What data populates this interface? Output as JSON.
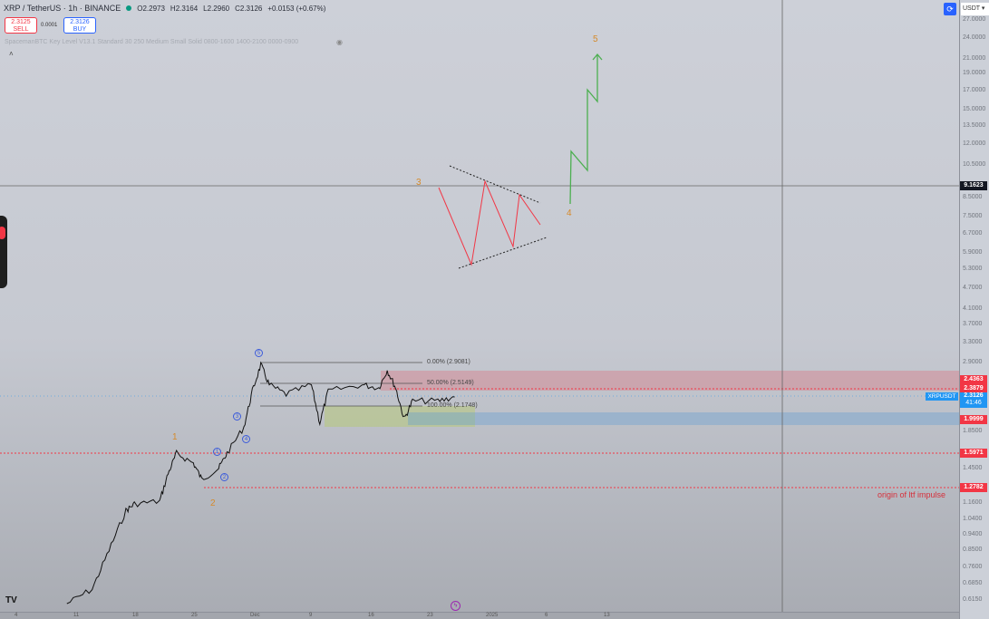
{
  "header": {
    "symbol": "XRP / TetherUS · 1h · BINANCE",
    "open": "O2.2973",
    "high": "H2.3164",
    "low": "L2.2960",
    "close": "C2.3126",
    "change": "+0.0153 (+0.67%)"
  },
  "trade": {
    "sell_price": "2.3125",
    "sell_label": "SELL",
    "spread": "0.0001",
    "buy_price": "2.3126",
    "buy_label": "BUY"
  },
  "indicator": "SpacemanBTC Key Level V13.1 Standard 30 250 Medium Small Solid 0800-1600 1400-2100 0000-0900",
  "currency": "USDT",
  "price_axis": {
    "scale": "log",
    "ticks": [
      "27.0000",
      "24.0000",
      "21.0000",
      "19.0000",
      "17.0000",
      "15.0000",
      "13.5000",
      "12.0000",
      "10.5000",
      "8.5000",
      "7.5000",
      "6.7000",
      "5.9000",
      "5.3000",
      "4.7000",
      "4.1000",
      "3.7000",
      "3.3000",
      "2.9000",
      "1.8500",
      "1.4500",
      "1.1600",
      "1.0400",
      "0.9400",
      "0.8500",
      "0.7600",
      "0.6850",
      "0.6150"
    ]
  },
  "price_labels": {
    "crosshair": "9.1623",
    "level1": "2.4363",
    "level2": "2.3879",
    "last_symbol": "XRPUSDT",
    "last": "2.3126",
    "countdown": "41:46",
    "level3": "1.9999",
    "level4": "1.5971",
    "level5": "1.2782"
  },
  "colors": {
    "red": "#f23645",
    "blue": "#2196f3",
    "green": "#4caf50",
    "orange": "#d58a2a"
  },
  "x_axis": [
    "4",
    "11",
    "18",
    "25",
    "Dec",
    "9",
    "16",
    "23",
    "2025",
    "6",
    "13"
  ],
  "fib": [
    "0.00% (2.9081)",
    "50.00% (2.5149)",
    "100.00% (2.1748)"
  ],
  "annotation": "origin of ltf impulse",
  "waves": {
    "w1": "1",
    "w2": "2",
    "w3": "3",
    "w4": "4",
    "w5": "5",
    "c1": "1",
    "c2": "2",
    "c3": "3",
    "c4": "4",
    "c5": "5"
  },
  "chart_data": {
    "type": "candlestick-approx",
    "x": [
      "2024-11-10",
      "2024-11-13",
      "2024-11-15",
      "2024-11-17",
      "2024-11-18",
      "2024-11-21",
      "2024-11-22",
      "2024-11-23",
      "2024-11-25",
      "2024-11-26",
      "2024-11-28",
      "2024-11-29",
      "2024-12-01",
      "2024-12-02",
      "2024-12-03",
      "2024-12-04",
      "2024-12-06",
      "2024-12-09",
      "2024-12-10",
      "2024-12-11",
      "2024-12-15",
      "2024-12-17",
      "2024-12-18",
      "2024-12-19",
      "2024-12-20",
      "2024-12-21",
      "2024-12-24",
      "2024-12-26"
    ],
    "y": [
      0.6,
      0.66,
      0.85,
      1.1,
      1.15,
      1.17,
      1.4,
      1.6,
      1.5,
      1.35,
      1.45,
      1.6,
      1.9,
      2.4,
      2.85,
      2.5,
      2.35,
      2.5,
      1.95,
      2.4,
      2.5,
      2.45,
      2.75,
      2.45,
      2.0,
      2.25,
      2.25,
      2.31
    ]
  }
}
